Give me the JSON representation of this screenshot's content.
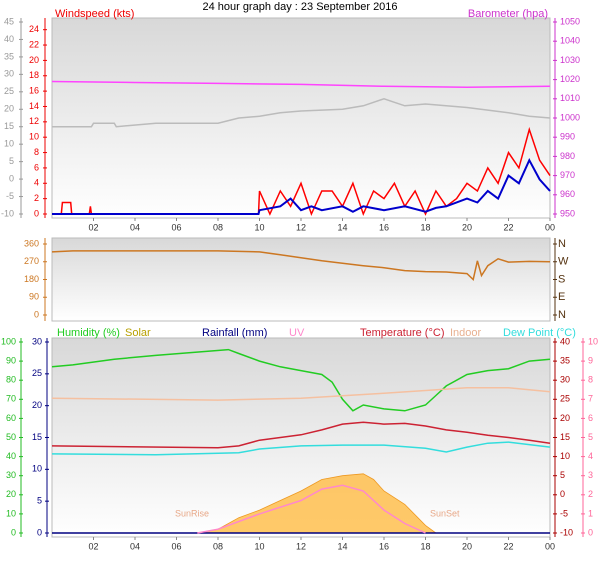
{
  "title": "24 hour graph day : 23 September 2016",
  "chart_data": [
    {
      "type": "line",
      "xlim": [
        0,
        24
      ],
      "xticks": [
        {
          "value": 2,
          "label": "02"
        },
        {
          "value": 4,
          "label": "04"
        },
        {
          "value": 6,
          "label": "06"
        },
        {
          "value": 8,
          "label": "08"
        },
        10,
        12,
        14,
        16,
        18,
        20,
        22,
        {
          "value": 24,
          "label": "00"
        }
      ],
      "axes": [
        {
          "color": "#999999",
          "ylim": [
            -10,
            45
          ],
          "yticks": [
            -10,
            -5,
            0,
            5,
            10,
            15,
            20,
            25,
            30,
            35,
            40,
            45
          ]
        },
        {
          "label": "Windspeed (kts)",
          "color": "#ee0000",
          "ylim": [
            0,
            25
          ],
          "yticks": [
            0,
            2,
            4,
            6,
            8,
            10,
            12,
            14,
            16,
            18,
            20,
            22,
            24
          ]
        },
        {
          "label": "Barometer (hpa)",
          "color": "#cc33cc",
          "ylim": [
            950,
            1050
          ],
          "yticks": [
            950,
            960,
            970,
            980,
            990,
            1000,
            1010,
            1020,
            1030,
            1040,
            1050
          ]
        }
      ],
      "series": [
        {
          "axis": 0,
          "color": "#bbbbbb",
          "x": [
            0,
            1.9,
            2,
            3,
            3.1,
            5,
            8,
            9,
            10,
            11,
            12,
            14,
            15,
            16,
            16.5,
            17,
            18,
            20,
            22,
            23,
            24
          ],
          "values": [
            15,
            15,
            16,
            16,
            15,
            16,
            16,
            17.5,
            18,
            19,
            19.5,
            20,
            21,
            23,
            22,
            21,
            21.5,
            20.5,
            19,
            18,
            17.5
          ]
        },
        {
          "axis": 2,
          "color": "#ff44ff",
          "x": [
            0,
            4,
            8,
            12,
            16,
            20,
            24
          ],
          "values": [
            1019,
            1018.5,
            1018,
            1017.5,
            1016.5,
            1016,
            1016.5
          ]
        },
        {
          "axis": 1,
          "color": "#ff0000",
          "x": [
            0,
            0.45,
            0.5,
            0.9,
            0.95,
            1.8,
            1.85,
            1.9,
            9.95,
            10,
            10.5,
            11,
            11.5,
            12,
            12.5,
            13,
            13.5,
            14,
            14.5,
            15,
            15.5,
            16,
            16.5,
            17,
            17.5,
            18,
            18.5,
            19,
            19.5,
            20,
            20.5,
            21,
            21.5,
            22,
            22.5,
            23,
            23.5,
            24
          ],
          "values": [
            0,
            0,
            1.5,
            1.5,
            0,
            0,
            1,
            0,
            0,
            3,
            0,
            3,
            1,
            4,
            0,
            3,
            3,
            1,
            4,
            0,
            3,
            2,
            4,
            1,
            3,
            0,
            3,
            1,
            2,
            4,
            3,
            6,
            4,
            8,
            6,
            11,
            7,
            5
          ]
        },
        {
          "axis": 1,
          "color": "#0000cc",
          "x": [
            0,
            9.95,
            10,
            11,
            11.5,
            12,
            12.5,
            13,
            14,
            14.5,
            15,
            16,
            17,
            18,
            18.5,
            19,
            20,
            20.5,
            21,
            21.5,
            22,
            22.5,
            23,
            23.5,
            24
          ],
          "values": [
            0,
            0,
            0.5,
            1,
            2,
            0.5,
            1,
            0.5,
            1,
            0.3,
            1,
            0.5,
            1,
            0.3,
            0.8,
            1,
            2,
            1.5,
            3,
            2,
            5,
            4,
            7,
            4.5,
            3
          ]
        }
      ]
    },
    {
      "type": "line",
      "xlim": [
        0,
        24
      ],
      "axes": [
        {
          "color": "#cc7722",
          "ylim": [
            0,
            360
          ],
          "yticks": [
            0,
            90,
            180,
            270,
            360
          ]
        },
        {
          "color": "#553311",
          "ylim": [
            0,
            360
          ],
          "yticks": [
            {
              "value": 0,
              "label": "N"
            },
            {
              "value": 90,
              "label": "E"
            },
            {
              "value": 180,
              "label": "S"
            },
            {
              "value": 270,
              "label": "W"
            },
            {
              "value": 360,
              "label": "N"
            }
          ]
        }
      ],
      "series": [
        {
          "axis": 0,
          "color": "#cc7722",
          "x": [
            0,
            1,
            8,
            10,
            11,
            12,
            13,
            14,
            15,
            16,
            17,
            18,
            19,
            20,
            20.3,
            20.5,
            20.7,
            21,
            21.5,
            22,
            23,
            24
          ],
          "values": [
            320,
            325,
            325,
            320,
            305,
            290,
            275,
            262,
            250,
            240,
            225,
            220,
            218,
            210,
            180,
            275,
            200,
            250,
            285,
            268,
            272,
            270
          ]
        }
      ]
    },
    {
      "type": "line",
      "xlim": [
        0,
        24
      ],
      "xticks": [
        {
          "value": 2,
          "label": "02"
        },
        {
          "value": 4,
          "label": "04"
        },
        {
          "value": 6,
          "label": "06"
        },
        {
          "value": 8,
          "label": "08"
        },
        10,
        12,
        14,
        16,
        18,
        20,
        22,
        {
          "value": 24,
          "label": "00"
        }
      ],
      "axes": [
        {
          "color": "#22bb22",
          "ylim": [
            0,
            100
          ],
          "yticks": [
            0,
            10,
            20,
            30,
            40,
            50,
            60,
            70,
            80,
            90,
            100
          ]
        },
        {
          "color": "#000080",
          "ylim": [
            0,
            30
          ],
          "yticks": [
            0,
            5,
            10,
            15,
            20,
            25,
            30
          ]
        },
        {
          "color": "#aa0000",
          "ylim": [
            -10,
            40
          ],
          "yticks": [
            -10,
            -5,
            0,
            5,
            10,
            15,
            20,
            25,
            30,
            35,
            40
          ]
        },
        {
          "color": "#ff6699",
          "ylim": [
            0,
            10
          ],
          "yticks": [
            0,
            1,
            2,
            3,
            4,
            5,
            6,
            7,
            8,
            9,
            10
          ]
        }
      ],
      "series": [
        {
          "name": "Solar",
          "axis": 0,
          "color": "#ffbb44",
          "fill": true,
          "x": [
            7,
            8,
            9,
            10,
            11,
            12,
            13,
            14,
            15,
            15.5,
            16,
            17,
            18,
            18.5
          ],
          "values": [
            0,
            2,
            8,
            12,
            17,
            22,
            28,
            30,
            31,
            28,
            22,
            15,
            4,
            0
          ]
        },
        {
          "name": "Humidity (%)",
          "axis": 0,
          "color": "#22cc22",
          "x": [
            0,
            1,
            3,
            5,
            8.5,
            9,
            10,
            11,
            12,
            13,
            13.5,
            14,
            14.5,
            15,
            16,
            17,
            18,
            18.5,
            19,
            20,
            21,
            22,
            23,
            24
          ],
          "values": [
            87,
            88,
            91,
            93,
            96,
            94,
            90,
            87,
            85,
            83,
            79,
            70,
            64,
            67,
            65,
            64,
            67,
            72,
            77,
            83,
            85,
            86,
            90,
            91
          ]
        },
        {
          "name": "Rainfall (mm)",
          "axis": 1,
          "color": "#000080",
          "x": [
            0,
            24
          ],
          "values": [
            0,
            0
          ]
        },
        {
          "name": "UV",
          "axis": 3,
          "color": "#ff88cc",
          "x": [
            7,
            8,
            10,
            12,
            13,
            14,
            15,
            16,
            17,
            18
          ],
          "values": [
            0,
            0.2,
            1,
            1.7,
            2.3,
            2.5,
            2.2,
            1.2,
            0.5,
            0
          ]
        },
        {
          "name": "Temperature (°C)",
          "axis": 2,
          "color": "#cc2233",
          "x": [
            0,
            8,
            9,
            10,
            11,
            12,
            13,
            14,
            15,
            16,
            17,
            18,
            19,
            20,
            21,
            22,
            23,
            24
          ],
          "values": [
            12.8,
            12.3,
            12.8,
            14.3,
            15,
            15.7,
            17,
            18.5,
            19,
            18.5,
            18.7,
            18,
            17,
            16.4,
            15.6,
            15,
            14.3,
            13.5
          ]
        },
        {
          "name": "Indoor",
          "axis": 2,
          "color": "#f5c0a0",
          "x": [
            0,
            8,
            12,
            16,
            20,
            22,
            24
          ],
          "values": [
            25.3,
            24.8,
            25.3,
            26.6,
            28,
            28,
            27
          ]
        },
        {
          "name": "Dew Point (°C)",
          "axis": 2,
          "color": "#33dddd",
          "x": [
            0,
            5,
            9,
            10,
            12,
            14,
            16,
            18,
            19,
            20,
            21,
            22,
            24
          ],
          "values": [
            10.7,
            10.5,
            11,
            12,
            12.8,
            13,
            13,
            12.2,
            11.2,
            12.5,
            13.5,
            13.8,
            12.5
          ]
        }
      ],
      "annotations": [
        "SunRise",
        "SunSet"
      ]
    }
  ]
}
